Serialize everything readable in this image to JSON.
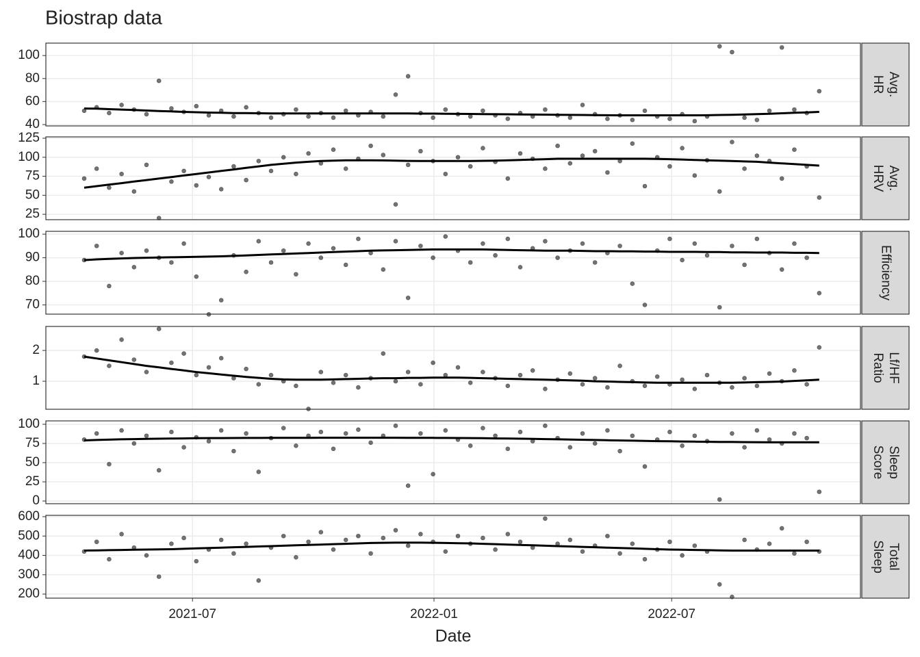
{
  "chart_data": {
    "type": "scatter",
    "title": "Biostrap data",
    "xlabel": "Date",
    "grid": true,
    "point_color": "#000000",
    "line_color": "#000000",
    "xlim": [
      2021.19,
      2022.89
    ],
    "xticks": [
      {
        "value": 2021.496,
        "label": "2021-07"
      },
      {
        "value": 2022,
        "label": "2022-01"
      },
      {
        "value": 2022.496,
        "label": "2022-07"
      }
    ],
    "x": [
      2021.27,
      2021.296,
      2021.322,
      2021.348,
      2021.374,
      2021.4,
      2021.426,
      2021.452,
      2021.478,
      2021.504,
      2021.53,
      2021.556,
      2021.582,
      2021.608,
      2021.634,
      2021.66,
      2021.686,
      2021.712,
      2021.738,
      2021.764,
      2021.79,
      2021.816,
      2021.842,
      2021.868,
      2021.894,
      2021.92,
      2021.946,
      2021.972,
      2021.998,
      2022.024,
      2022.05,
      2022.076,
      2022.102,
      2022.128,
      2022.154,
      2022.18,
      2022.206,
      2022.232,
      2022.258,
      2022.284,
      2022.31,
      2022.336,
      2022.362,
      2022.388,
      2022.414,
      2022.44,
      2022.466,
      2022.492,
      2022.518,
      2022.544,
      2022.57,
      2022.596,
      2022.622,
      2022.648,
      2022.674,
      2022.7,
      2022.726,
      2022.752,
      2022.778,
      2022.804
    ],
    "panels": [
      {
        "strip": [
          "Avg.",
          "HR"
        ],
        "ylim": [
          38.8,
          110.8
        ],
        "yticks": [
          40,
          60,
          80,
          100
        ],
        "points": [
          52,
          55,
          50,
          57,
          53,
          49,
          78,
          54,
          51,
          56,
          48,
          52,
          47,
          55,
          50,
          46,
          49,
          53,
          47,
          50,
          46,
          52,
          48,
          51,
          47,
          66,
          82,
          50,
          46,
          53,
          49,
          47,
          52,
          48,
          45,
          50,
          47,
          53,
          48,
          46,
          57,
          49,
          45,
          48,
          44,
          52,
          47,
          45,
          49,
          43,
          47,
          108,
          103,
          46,
          44,
          52,
          107,
          53,
          50,
          69
        ],
        "smooth": [
          54,
          53.8,
          53.4,
          53,
          52.6,
          52.2,
          51.8,
          51.4,
          51,
          50.7,
          50.4,
          50.2,
          50,
          49.9,
          49.8,
          49.7,
          49.6,
          49.6,
          49.6,
          49.6,
          49.6,
          49.6,
          49.6,
          49.6,
          49.6,
          49.6,
          49.6,
          49.5,
          49.5,
          49.4,
          49.3,
          49.2,
          49.1,
          49,
          48.9,
          48.8,
          48.7,
          48.6,
          48.5,
          48.4,
          48.3,
          48.2,
          48.1,
          48,
          48,
          48,
          48,
          48,
          48,
          48,
          48.1,
          48.3,
          48.5,
          48.8,
          49.1,
          49.4,
          49.8,
          50.2,
          50.6,
          51
        ]
      },
      {
        "strip": [
          "Avg.",
          "HRV"
        ],
        "ylim": [
          17.9,
          126.8
        ],
        "yticks": [
          25,
          50,
          75,
          100,
          125
        ],
        "points": [
          72,
          85,
          60,
          78,
          55,
          90,
          20,
          68,
          82,
          63,
          74,
          58,
          88,
          70,
          95,
          82,
          100,
          78,
          105,
          92,
          110,
          85,
          98,
          115,
          103,
          38,
          90,
          108,
          95,
          78,
          100,
          88,
          112,
          94,
          72,
          105,
          98,
          85,
          115,
          92,
          102,
          108,
          80,
          95,
          118,
          62,
          100,
          88,
          112,
          76,
          96,
          55,
          120,
          85,
          102,
          95,
          72,
          110,
          88,
          47
        ],
        "smooth": [
          60,
          62,
          64,
          66,
          68,
          70,
          72,
          74,
          76,
          78,
          80,
          82,
          84,
          86,
          88,
          90,
          91.5,
          93,
          94,
          95,
          95.5,
          96,
          96,
          96,
          95.8,
          95.5,
          95.2,
          95,
          95,
          95,
          95,
          95,
          95.3,
          95.6,
          96,
          96.5,
          97,
          97.5,
          98,
          98,
          98,
          98,
          98,
          98,
          98,
          98,
          97.8,
          97.5,
          97,
          96.5,
          96,
          95.5,
          95,
          94.5,
          94,
          93,
          92,
          91,
          90,
          89
        ]
      },
      {
        "strip": [
          "Efficiency"
        ],
        "ylim": [
          66.1,
          101.2
        ],
        "yticks": [
          70,
          80,
          90,
          100
        ],
        "points": [
          89,
          95,
          78,
          92,
          86,
          93,
          90,
          88,
          96,
          82,
          66,
          72,
          91,
          84,
          97,
          88,
          93,
          83,
          96,
          90,
          94,
          87,
          98,
          92,
          85,
          97,
          73,
          95,
          90,
          99,
          93,
          88,
          96,
          91,
          98,
          86,
          94,
          97,
          90,
          93,
          96,
          88,
          92,
          95,
          79,
          70,
          93,
          98,
          89,
          96,
          91,
          69,
          95,
          87,
          98,
          92,
          85,
          96,
          90,
          75
        ],
        "smooth": [
          89,
          89.3,
          89.5,
          89.7,
          89.9,
          90,
          90.1,
          90.2,
          90.3,
          90.4,
          90.5,
          90.6,
          90.8,
          91,
          91.2,
          91.4,
          91.6,
          91.8,
          92,
          92.2,
          92.4,
          92.6,
          92.8,
          93,
          93.1,
          93.2,
          93.3,
          93.4,
          93.5,
          93.5,
          93.5,
          93.5,
          93.5,
          93.4,
          93.3,
          93.2,
          93.1,
          93,
          93,
          93,
          92.9,
          92.8,
          92.8,
          92.7,
          92.7,
          92.6,
          92.6,
          92.5,
          92.5,
          92.5,
          92.4,
          92.4,
          92.3,
          92.3,
          92.2,
          92.2,
          92.2,
          92.1,
          92.1,
          92
        ]
      },
      {
        "strip": [
          "Lf/HF",
          "Ratio"
        ],
        "ylim": [
          0.09,
          2.78
        ],
        "yticks": [
          1,
          2
        ],
        "points": [
          1.8,
          2.0,
          1.5,
          2.35,
          1.7,
          1.3,
          2.7,
          1.6,
          1.9,
          1.2,
          1.45,
          1.75,
          1.1,
          1.4,
          0.9,
          1.2,
          1.0,
          0.85,
          0.1,
          1.3,
          0.95,
          1.2,
          0.8,
          1.1,
          1.9,
          1.0,
          1.3,
          0.9,
          1.6,
          1.2,
          1.45,
          0.95,
          1.3,
          1.1,
          0.85,
          1.2,
          1.35,
          0.75,
          1.05,
          1.25,
          0.9,
          1.1,
          0.8,
          1.5,
          1.0,
          0.85,
          1.15,
          0.9,
          1.05,
          0.75,
          1.2,
          0.95,
          0.8,
          1.1,
          0.85,
          1.25,
          1.0,
          1.35,
          0.9,
          2.1
        ],
        "smooth": [
          1.8,
          1.74,
          1.68,
          1.62,
          1.56,
          1.5,
          1.45,
          1.4,
          1.35,
          1.3,
          1.26,
          1.22,
          1.18,
          1.14,
          1.11,
          1.08,
          1.06,
          1.05,
          1.05,
          1.05,
          1.06,
          1.07,
          1.08,
          1.09,
          1.1,
          1.1,
          1.11,
          1.11,
          1.12,
          1.12,
          1.12,
          1.11,
          1.1,
          1.09,
          1.08,
          1.07,
          1.06,
          1.05,
          1.04,
          1.03,
          1.02,
          1.0,
          0.99,
          0.98,
          0.97,
          0.96,
          0.95,
          0.95,
          0.95,
          0.95,
          0.95,
          0.95,
          0.95,
          0.96,
          0.97,
          0.98,
          0.99,
          1.01,
          1.03,
          1.05
        ]
      },
      {
        "strip": [
          "Sleep",
          "Score"
        ],
        "ylim": [
          -3.5,
          104.4
        ],
        "yticks": [
          0,
          25,
          50,
          75,
          100
        ],
        "points": [
          80,
          88,
          48,
          92,
          75,
          85,
          40,
          90,
          70,
          83,
          78,
          92,
          65,
          88,
          38,
          82,
          95,
          72,
          85,
          90,
          68,
          88,
          93,
          76,
          85,
          98,
          20,
          88,
          35,
          92,
          80,
          72,
          95,
          85,
          68,
          90,
          78,
          98,
          82,
          70,
          88,
          75,
          92,
          65,
          85,
          45,
          80,
          90,
          72,
          85,
          78,
          2,
          88,
          70,
          92,
          80,
          75,
          88,
          82,
          12
        ],
        "smooth": [
          79,
          79.5,
          80,
          80.4,
          80.7,
          81,
          81.2,
          81.4,
          81.6,
          81.8,
          82,
          82,
          82.1,
          82.2,
          82.2,
          82.3,
          82.3,
          82.4,
          82.4,
          82.5,
          82.5,
          82.5,
          82.5,
          82.5,
          82.5,
          82.5,
          82.4,
          82.4,
          82.3,
          82.2,
          82.1,
          82,
          81.8,
          81.6,
          81.4,
          81.2,
          81,
          80.7,
          80.4,
          80.1,
          79.8,
          79.5,
          79.2,
          78.9,
          78.6,
          78.3,
          78,
          77.8,
          77.6,
          77.4,
          77.2,
          77,
          76.9,
          76.8,
          76.7,
          76.6,
          76.6,
          76.5,
          76.5,
          76.5
        ]
      },
      {
        "strip": [
          "Total",
          "Sleep"
        ],
        "ylim": [
          179,
          607
        ],
        "yticks": [
          200,
          300,
          400,
          500,
          600
        ],
        "points": [
          420,
          470,
          380,
          510,
          440,
          400,
          290,
          460,
          490,
          370,
          430,
          480,
          410,
          460,
          270,
          440,
          500,
          390,
          470,
          520,
          430,
          480,
          500,
          410,
          490,
          530,
          450,
          510,
          470,
          420,
          500,
          460,
          490,
          430,
          510,
          470,
          440,
          590,
          460,
          480,
          420,
          450,
          500,
          410,
          460,
          380,
          430,
          470,
          400,
          450,
          420,
          250,
          185,
          480,
          430,
          460,
          540,
          410,
          470,
          420
        ],
        "smooth": [
          425,
          426,
          427,
          428,
          429,
          430,
          431,
          432,
          434,
          436,
          438,
          440,
          442,
          444,
          446,
          448,
          450,
          452,
          454,
          456,
          458,
          460,
          462,
          464,
          465,
          466,
          466,
          466,
          465,
          464,
          463,
          462,
          460,
          458,
          456,
          454,
          452,
          450,
          448,
          446,
          444,
          442,
          440,
          438,
          436,
          434,
          432,
          430,
          429,
          428,
          427,
          426,
          425,
          425,
          425,
          425,
          425,
          425,
          425,
          425
        ]
      }
    ]
  }
}
